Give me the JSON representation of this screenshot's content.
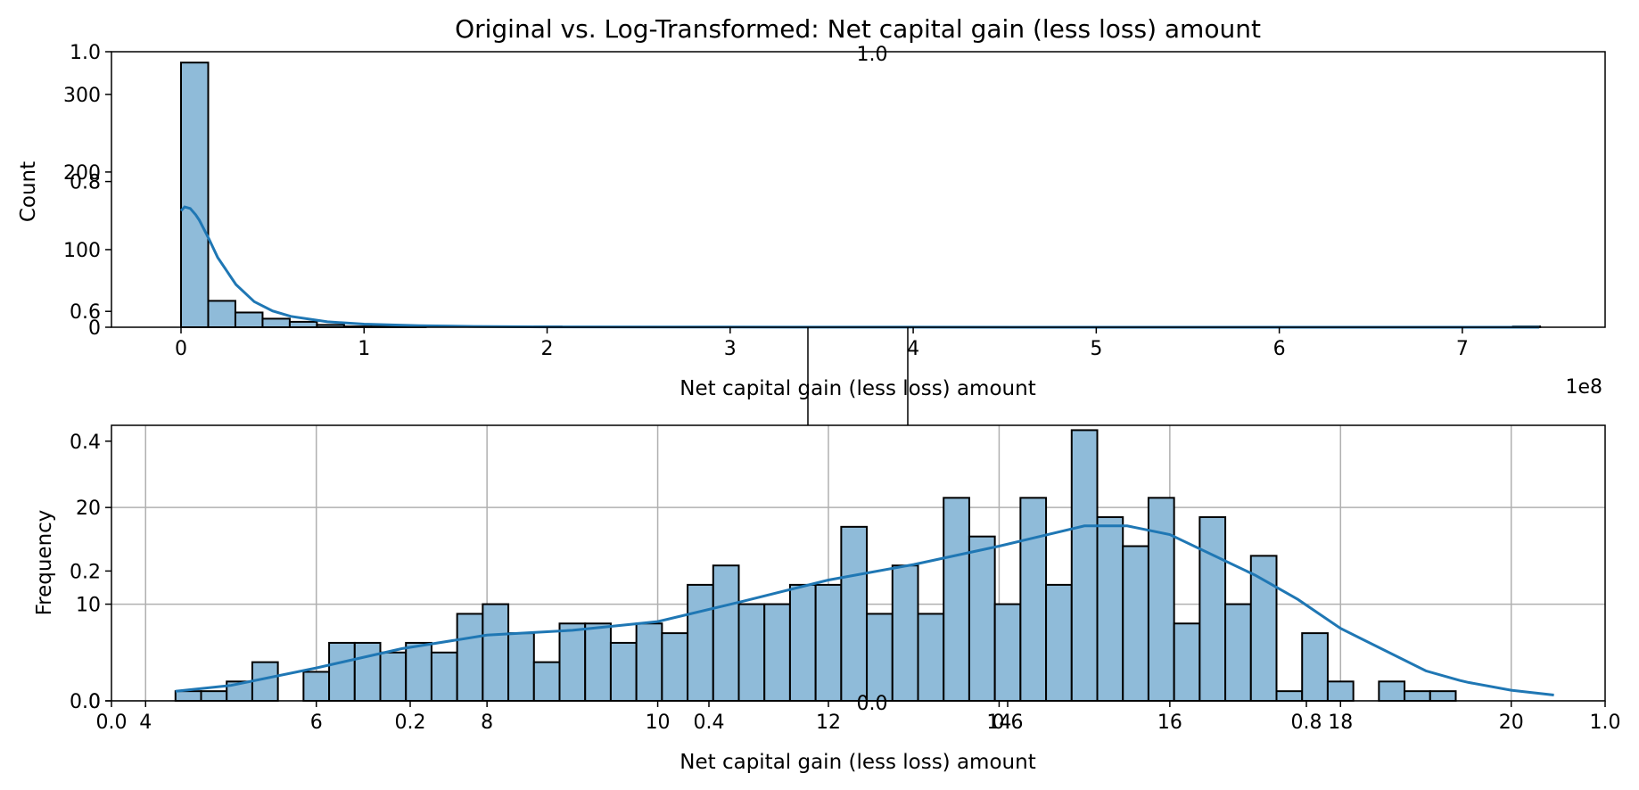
{
  "chart_data": [
    {
      "type": "histogram",
      "title": "Original vs. Log-Transformed: Net capital gain (less loss) amount",
      "xlabel": "Net capital gain (less loss) amount",
      "ylabel": "Count",
      "x_multiplier_label": "1e8",
      "xlim": [
        -0.38,
        7.78
      ],
      "ylim": [
        0,
        355
      ],
      "xticks": [
        0,
        1,
        2,
        3,
        4,
        5,
        6,
        7
      ],
      "yticks": [
        0,
        100,
        200,
        300
      ],
      "bin_width": 0.1485,
      "bin_start": 0,
      "counts": [
        341,
        34,
        19,
        11,
        7,
        3,
        1,
        1,
        2,
        0,
        0,
        0,
        0,
        1,
        0,
        0,
        0,
        0,
        0,
        0,
        0,
        0,
        0,
        0,
        0,
        0,
        0,
        0,
        0,
        0,
        0,
        0,
        0,
        0,
        0,
        0,
        0,
        0,
        0,
        0,
        0,
        0,
        0,
        0,
        0,
        0,
        0,
        0,
        0,
        1
      ],
      "kde": {
        "x": [
          0,
          0.02,
          0.05,
          0.08,
          0.1,
          0.15,
          0.2,
          0.3,
          0.4,
          0.5,
          0.6,
          0.8,
          1.0,
          1.3,
          1.6,
          2.0,
          3.0,
          4.0,
          5.0,
          6.0,
          7.0,
          7.42
        ],
        "y": [
          150,
          155,
          153,
          145,
          138,
          115,
          90,
          55,
          33,
          21,
          14,
          7,
          4,
          2,
          1,
          0.5,
          0.2,
          0.1,
          0.05,
          0.02,
          0.01,
          0
        ]
      },
      "grid": false,
      "color": "#1f77b4",
      "bar_fill": "#8fbbd9"
    },
    {
      "type": "histogram",
      "xlabel": "Net capital gain (less loss) amount",
      "ylabel": "Frequency",
      "xlim": [
        3.6,
        21.1
      ],
      "ylim": [
        0,
        28.5
      ],
      "xticks": [
        4,
        6,
        8,
        10,
        12,
        14,
        16,
        18,
        20
      ],
      "yticks": [
        0,
        10,
        20
      ],
      "bin_width": 0.3,
      "bin_start": 4.35,
      "counts": [
        1,
        1,
        2,
        4,
        0,
        3,
        6,
        6,
        5,
        6,
        5,
        9,
        10,
        7,
        4,
        8,
        8,
        6,
        8,
        7,
        12,
        14,
        10,
        10,
        12,
        12,
        18,
        9,
        14,
        9,
        21,
        17,
        10,
        21,
        12,
        28,
        19,
        16,
        21,
        8,
        19,
        10,
        15,
        1,
        7,
        2,
        0,
        2,
        1,
        1
      ],
      "kde": {
        "x": [
          4.35,
          5,
          6,
          7,
          8,
          9,
          10,
          11,
          12,
          13,
          14,
          15,
          15.5,
          16,
          17,
          17.5,
          18,
          19,
          19.5,
          20,
          20.5,
          19.4
        ],
        "y": [
          1,
          1.6,
          3.4,
          5.4,
          6.8,
          7.3,
          8.2,
          10.3,
          12.5,
          14.1,
          16.0,
          18.1,
          18.1,
          17.2,
          13.0,
          10.5,
          7.5,
          3.1,
          1.9,
          1.1,
          0.6,
          2.1
        ]
      },
      "grid": true,
      "color": "#1f77b4",
      "bar_fill": "#8fbbd9"
    },
    {
      "type": "empty-axes",
      "xticks": [
        0.0,
        0.2,
        0.4,
        0.6,
        0.8,
        1.0
      ],
      "yticks": [
        0.0,
        0.2,
        0.4,
        0.6,
        0.8,
        1.0
      ],
      "note_labels": [
        "0.0"
      ]
    }
  ]
}
